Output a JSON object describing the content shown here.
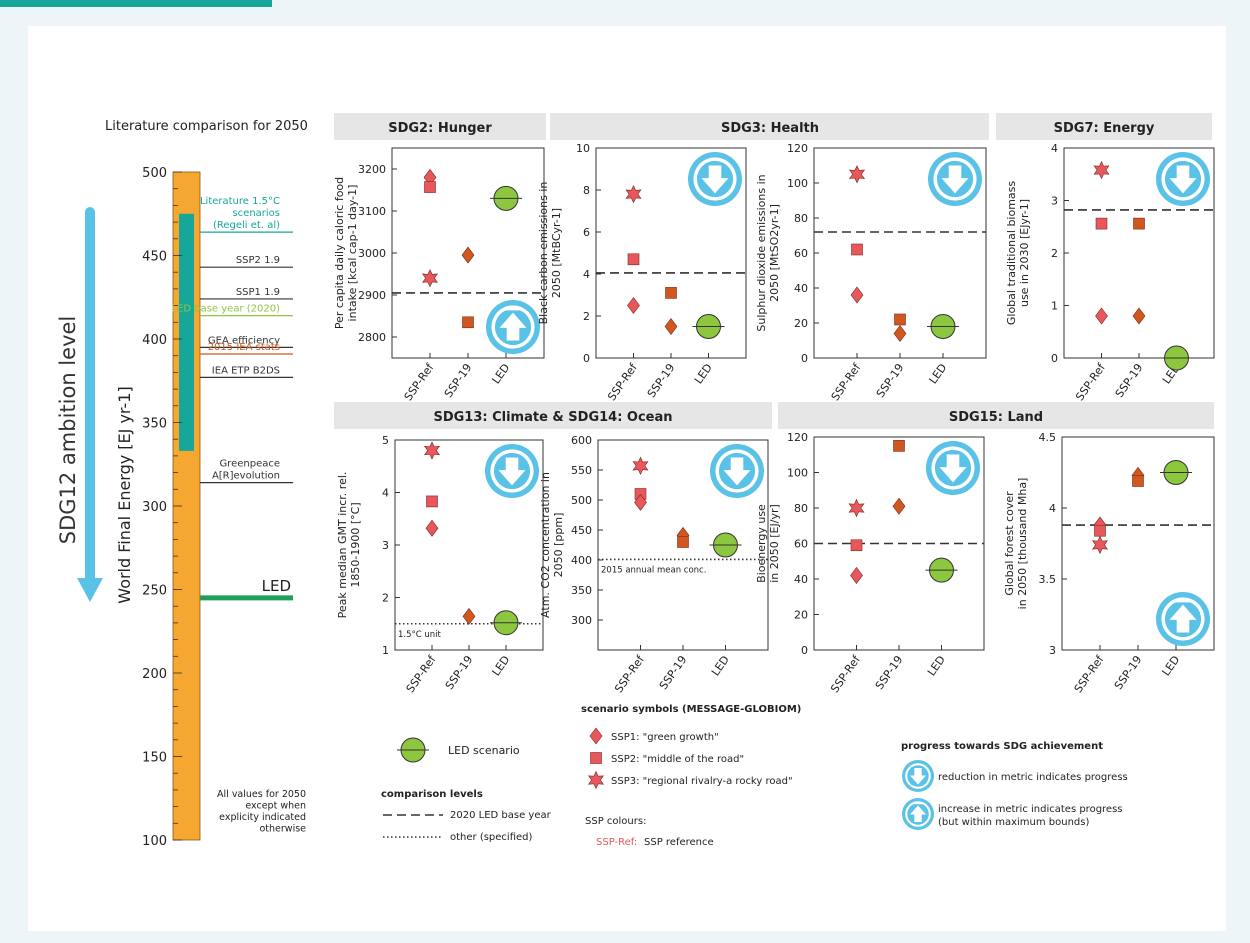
{
  "page_title": "Literature comparison for 2050",
  "sections": [
    {
      "id": "hunger",
      "label": "SDG2: Hunger"
    },
    {
      "id": "health",
      "label": "SDG3: Health"
    },
    {
      "id": "energy",
      "label": "SDG7: Energy"
    },
    {
      "id": "climate",
      "label": "SDG13: Climate & SDG14: Ocean"
    },
    {
      "id": "land",
      "label": "SDG15: Land"
    }
  ],
  "colors": {
    "ssp": "#e8575c",
    "ssp19": "#d0581e",
    "led": "#8dc63f",
    "arrow": "#5bc2e7",
    "bar": "#f6a732",
    "teal": "#17a69a",
    "led_line": "#1f9f5a",
    "led_base": "#8dc63f",
    "iea": "#d0581e",
    "section_bg": "#e6e6e6"
  },
  "chart_data": [
    {
      "id": "ambition",
      "type": "bar",
      "title": "",
      "ylabel": "World Final Energy [EJ yr-1]",
      "side_label": "SDG12 ambition level",
      "ylim": [
        100,
        500
      ],
      "yticks": [
        100,
        150,
        200,
        250,
        300,
        350,
        400,
        450,
        500
      ],
      "teal_range": [
        333,
        475
      ],
      "levels": [
        {
          "value": 464,
          "lines": [
            "Literature 1.5°C",
            "scenarios",
            "(Regeli et. al)"
          ],
          "color": "#17a69a"
        },
        {
          "value": 443,
          "lines": [
            "SSP2 1.9"
          ],
          "color": "#333333"
        },
        {
          "value": 424,
          "lines": [
            "SSP1 1.9"
          ],
          "color": "#333333"
        },
        {
          "value": 414,
          "lines": [
            "LED base year (2020)"
          ],
          "color": "#8dc63f"
        },
        {
          "value": 395,
          "lines": [
            "GEA efficiency"
          ],
          "color": "#333333"
        },
        {
          "value": 391,
          "lines": [
            "2015 IEA stats"
          ],
          "color": "#d0581e"
        },
        {
          "value": 377,
          "lines": [
            "IEA ETP B2DS"
          ],
          "color": "#333333"
        },
        {
          "value": 314,
          "lines": [
            "Greenpeace",
            "A[R]evolution"
          ],
          "color": "#333333"
        }
      ],
      "led": {
        "value": 245,
        "label": "LED"
      },
      "note": [
        "All values for 2050",
        "except when",
        "explicity indicated",
        "otherwise"
      ]
    },
    {
      "id": "food",
      "type": "scatter",
      "ylabel": [
        "Per capita daily caloric food",
        "intake [kcal cap-1 day-1]"
      ],
      "ylim": [
        2750,
        3250
      ],
      "yticks": [
        2800,
        2900,
        3000,
        3100,
        3200
      ],
      "categories": [
        "SSP-Ref",
        "SSP-19",
        "LED"
      ],
      "base_line": {
        "value": 2905,
        "style": "dashed",
        "label": ""
      },
      "points": [
        {
          "cat": 0,
          "shape": "diamond",
          "group": "ref",
          "value": 3180
        },
        {
          "cat": 0,
          "shape": "square",
          "group": "ref",
          "value": 3157
        },
        {
          "cat": 0,
          "shape": "star",
          "group": "ref",
          "value": 2940
        },
        {
          "cat": 1,
          "shape": "diamond",
          "group": "s19",
          "value": 2995
        },
        {
          "cat": 1,
          "shape": "square",
          "group": "s19",
          "value": 2835
        },
        {
          "cat": 2,
          "shape": "circle",
          "group": "led",
          "value": 3130
        }
      ],
      "arrow": "increase",
      "arrow_pos": "bottom-right"
    },
    {
      "id": "blackcarbon",
      "type": "scatter",
      "ylabel": [
        "Black carbon emissions in",
        "2050 [MtBCyr-1]"
      ],
      "ylim": [
        0,
        10
      ],
      "yticks": [
        0,
        2,
        4,
        6,
        8,
        10
      ],
      "categories": [
        "SSP-Ref",
        "SSP-19",
        "LED"
      ],
      "base_line": {
        "value": 4.05,
        "style": "dashed",
        "label": ""
      },
      "points": [
        {
          "cat": 0,
          "shape": "star",
          "group": "ref",
          "value": 7.8
        },
        {
          "cat": 0,
          "shape": "square",
          "group": "ref",
          "value": 4.7
        },
        {
          "cat": 0,
          "shape": "diamond",
          "group": "ref",
          "value": 2.5
        },
        {
          "cat": 1,
          "shape": "square",
          "group": "s19",
          "value": 3.1
        },
        {
          "cat": 1,
          "shape": "diamond",
          "group": "s19",
          "value": 1.5
        },
        {
          "cat": 2,
          "shape": "circle",
          "group": "led",
          "value": 1.5
        }
      ],
      "arrow": "reduction",
      "arrow_pos": "top-right"
    },
    {
      "id": "sulphur",
      "type": "scatter",
      "ylabel": [
        "Sulphur dioxide emissions in",
        "2050 [MtSO2yr-1]"
      ],
      "ylim": [
        0,
        120
      ],
      "yticks": [
        0,
        20,
        40,
        60,
        80,
        100,
        120
      ],
      "categories": [
        "SSP-Ref",
        "SSP-19",
        "LED"
      ],
      "base_line": {
        "value": 72,
        "style": "dashed",
        "label": ""
      },
      "points": [
        {
          "cat": 0,
          "shape": "star",
          "group": "ref",
          "value": 105
        },
        {
          "cat": 0,
          "shape": "square",
          "group": "ref",
          "value": 62
        },
        {
          "cat": 0,
          "shape": "diamond",
          "group": "ref",
          "value": 36
        },
        {
          "cat": 1,
          "shape": "square",
          "group": "s19",
          "value": 22
        },
        {
          "cat": 1,
          "shape": "diamond",
          "group": "s19",
          "value": 14
        },
        {
          "cat": 2,
          "shape": "circle",
          "group": "led",
          "value": 18
        }
      ],
      "arrow": "reduction",
      "arrow_pos": "top-right"
    },
    {
      "id": "biomass",
      "type": "scatter",
      "ylabel": [
        "Global traditional biomass",
        "use in 2030 [EJyr-1]"
      ],
      "ylim": [
        0,
        4
      ],
      "yticks": [
        0,
        1,
        2,
        3,
        4
      ],
      "categories": [
        "SSP-Ref",
        "SSP-19",
        "LED"
      ],
      "base_line": {
        "value": 2.82,
        "style": "dashed",
        "label": ""
      },
      "points": [
        {
          "cat": 0,
          "shape": "star",
          "group": "ref",
          "value": 3.58
        },
        {
          "cat": 0,
          "shape": "square",
          "group": "ref",
          "value": 2.56
        },
        {
          "cat": 0,
          "shape": "diamond",
          "group": "ref",
          "value": 0.8
        },
        {
          "cat": 1,
          "shape": "square",
          "group": "s19",
          "value": 2.56
        },
        {
          "cat": 1,
          "shape": "diamond",
          "group": "s19",
          "value": 0.8
        },
        {
          "cat": 2,
          "shape": "circle",
          "group": "led",
          "value": 0.0
        }
      ],
      "arrow": "reduction",
      "arrow_pos": "top-right"
    },
    {
      "id": "gmt",
      "type": "scatter",
      "ylabel": [
        "Peak median GMT incr. rel.",
        "1850-1900 [°C]"
      ],
      "ylim": [
        1,
        5
      ],
      "yticks": [
        1,
        2,
        3,
        4,
        5
      ],
      "categories": [
        "SSP-Ref",
        "SSP-19",
        "LED"
      ],
      "base_line": {
        "value": 1.5,
        "style": "dotted",
        "label": "1.5°C unit"
      },
      "points": [
        {
          "cat": 0,
          "shape": "star",
          "group": "ref",
          "value": 4.8
        },
        {
          "cat": 0,
          "shape": "square",
          "group": "ref",
          "value": 3.83
        },
        {
          "cat": 0,
          "shape": "diamond",
          "group": "ref",
          "value": 3.32
        },
        {
          "cat": 1,
          "shape": "diamond",
          "group": "s19",
          "value": 1.64
        },
        {
          "cat": 2,
          "shape": "circle",
          "group": "led",
          "value": 1.52
        }
      ],
      "arrow": "reduction",
      "arrow_pos": "top-right"
    },
    {
      "id": "co2",
      "type": "scatter",
      "ylabel": [
        "Atm. CO2 concentration in",
        "2050 [ppm]"
      ],
      "ylim": [
        250,
        600
      ],
      "yticks": [
        300,
        350,
        400,
        450,
        500,
        550,
        600
      ],
      "categories": [
        "SSP-Ref",
        "SSP-19",
        "LED"
      ],
      "base_line": {
        "value": 401,
        "style": "dotted",
        "label": "2015 annual mean conc."
      },
      "points": [
        {
          "cat": 0,
          "shape": "star",
          "group": "ref",
          "value": 557
        },
        {
          "cat": 0,
          "shape": "square",
          "group": "ref",
          "value": 510
        },
        {
          "cat": 0,
          "shape": "diamond",
          "group": "ref",
          "value": 496
        },
        {
          "cat": 1,
          "shape": "diamond",
          "group": "s19",
          "value": 441
        },
        {
          "cat": 1,
          "shape": "square",
          "group": "s19",
          "value": 430
        },
        {
          "cat": 2,
          "shape": "circle",
          "group": "led",
          "value": 425
        }
      ],
      "arrow": "reduction",
      "arrow_pos": "top-right"
    },
    {
      "id": "bioenergy",
      "type": "scatter",
      "ylabel": [
        "Bioenergy use",
        "in 2050 [EJ/yr]"
      ],
      "ylim": [
        0,
        120
      ],
      "yticks": [
        0,
        20,
        40,
        60,
        80,
        100,
        120
      ],
      "categories": [
        "SSP-Ref",
        "SSP-19",
        "LED"
      ],
      "base_line": {
        "value": 60,
        "style": "dashed",
        "label": ""
      },
      "points": [
        {
          "cat": 0,
          "shape": "star",
          "group": "ref",
          "value": 80
        },
        {
          "cat": 0,
          "shape": "square",
          "group": "ref",
          "value": 59
        },
        {
          "cat": 0,
          "shape": "diamond",
          "group": "ref",
          "value": 42
        },
        {
          "cat": 1,
          "shape": "square",
          "group": "s19",
          "value": 115
        },
        {
          "cat": 1,
          "shape": "diamond",
          "group": "s19",
          "value": 81
        },
        {
          "cat": 2,
          "shape": "circle",
          "group": "led",
          "value": 45
        }
      ],
      "arrow": "reduction",
      "arrow_pos": "top-right"
    },
    {
      "id": "forest",
      "type": "scatter",
      "ylabel": [
        "Global forest cover",
        "in 2050 [thousand Mha]"
      ],
      "ylim": [
        3.0,
        4.5
      ],
      "yticks": [
        3,
        3.5,
        4,
        4.5
      ],
      "ytick_labels": [
        "3",
        "3.5",
        "4",
        "4.5"
      ],
      "categories": [
        "SSP-Ref",
        "SSP-19",
        "LED"
      ],
      "base_line": {
        "value": 3.88,
        "style": "dashed",
        "label": ""
      },
      "points": [
        {
          "cat": 0,
          "shape": "diamond",
          "group": "ref",
          "value": 3.88
        },
        {
          "cat": 0,
          "shape": "square",
          "group": "ref",
          "value": 3.84
        },
        {
          "cat": 0,
          "shape": "star",
          "group": "ref",
          "value": 3.74
        },
        {
          "cat": 1,
          "shape": "diamond",
          "group": "s19",
          "value": 4.23
        },
        {
          "cat": 1,
          "shape": "square",
          "group": "s19",
          "value": 4.19
        },
        {
          "cat": 2,
          "shape": "circle",
          "group": "led",
          "value": 4.25
        }
      ],
      "arrow": "increase",
      "arrow_pos": "bottom-right"
    }
  ],
  "legend": {
    "led_scenario": "LED scenario",
    "comparison_title": "comparison levels",
    "comparison_dashed": "2020 LED base year",
    "comparison_dotted": "other (specified)",
    "symbols_title": "scenario symbols (MESSAGE-GLOBIOM)",
    "symbols": [
      {
        "shape": "diamond",
        "label": "SSP1: \"green growth\""
      },
      {
        "shape": "square",
        "label": "SSP2: \"middle of the road\""
      },
      {
        "shape": "star",
        "label": "SSP3: \"regional rivalry-a rocky road\""
      }
    ],
    "ssp_colours_title": "SSP colours:",
    "ssp_ref_key": "SSP-Ref:",
    "ssp_ref_value": "SSP reference",
    "progress_title": "progress towards SDG achievement",
    "progress_reduction": "reduction in metric indicates progress",
    "progress_increase_1": "increase in metric indicates progress",
    "progress_increase_2": "(but within maximum bounds)"
  }
}
